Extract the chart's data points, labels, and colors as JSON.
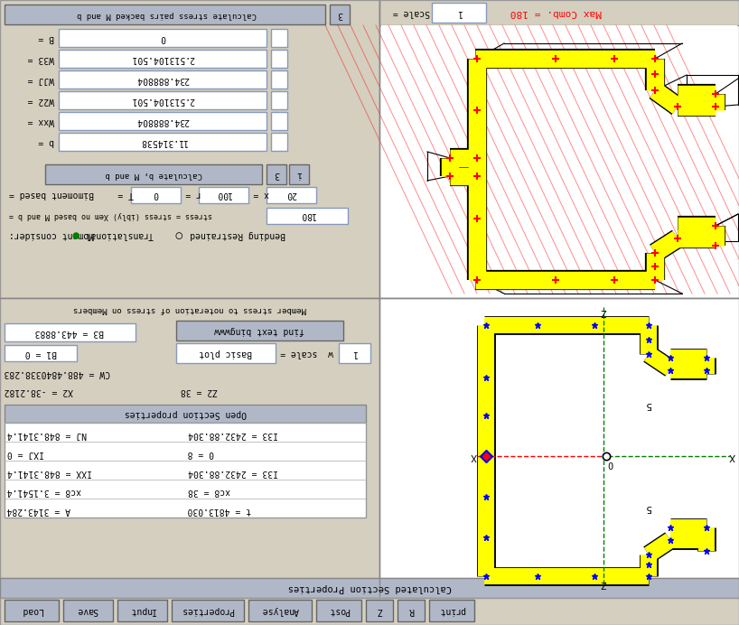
{
  "bg_color": "#d4cfbf",
  "title_bar_bg": "#b0b8c8",
  "white": "#ffffff",
  "red_text": "#ff0000",
  "scale_label": "Scale =",
  "scale_value": "1",
  "max_comb_label": "Max Comb. = 180",
  "fields_top": [
    {
      "label": "B =",
      "value": "0"
    },
    {
      "label": "W33 =",
      "value": "2.513104.501"
    },
    {
      "label": "WJJ =",
      "value": "234.888804"
    },
    {
      "label": "W22 =",
      "value": "2.513104.501"
    },
    {
      "label": "Wxx =",
      "value": "234.888804"
    },
    {
      "label": "b =",
      "value": "11.314538"
    }
  ],
  "footer_buttons": [
    "Load",
    "Save",
    "Input",
    "Properties",
    "Analyse",
    "Post",
    "Z",
    "R",
    "print"
  ],
  "footer_widths": [
    60,
    55,
    55,
    80,
    70,
    50,
    30,
    30,
    50
  ]
}
